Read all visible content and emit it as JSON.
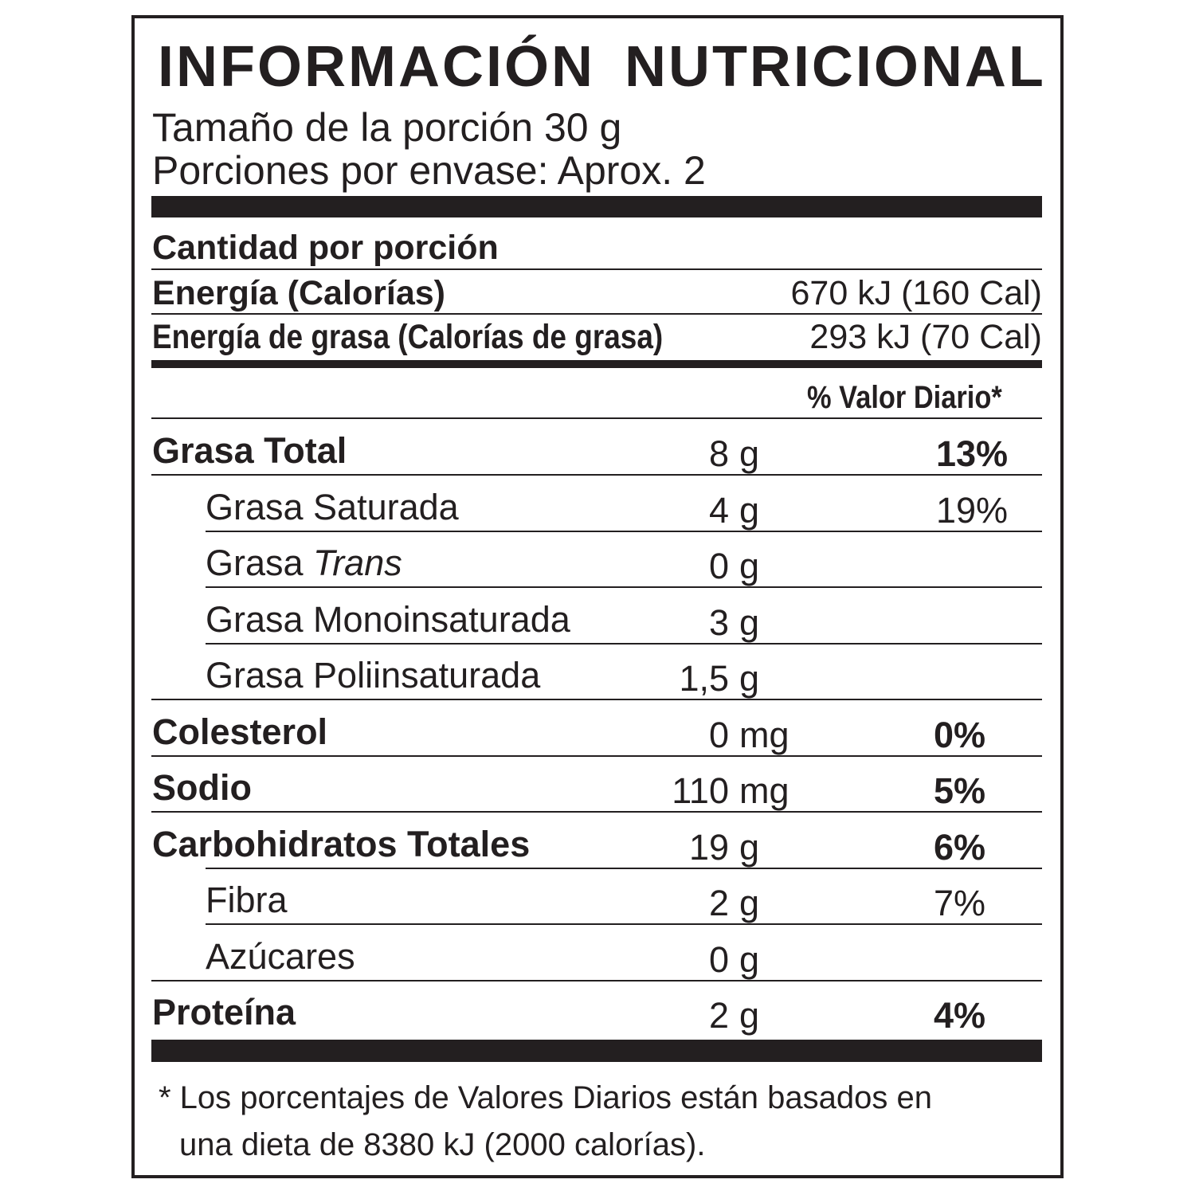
{
  "title": "INFORMACIÓN  NUTRICIONAL",
  "serving_size": "Tamaño de la porción  30 g",
  "servings_per_container": "Porciones por envase: Aprox. 2",
  "amount_per_serving": "Cantidad por porción",
  "energy": {
    "label": "Energía (Calorías)",
    "value": "670 kJ (160 Cal)"
  },
  "energy_fat": {
    "label": "Energía de grasa (Calorías de grasa)",
    "value": "293 kJ (70 Cal)"
  },
  "daily_value_header": "% Valor Diario*",
  "nutrients": [
    {
      "label": "Grasa Total",
      "num": "8",
      "unit": "g",
      "pct": "13%"
    },
    {
      "label": "Grasa Saturada",
      "num": "4",
      "unit": "g",
      "pct": "19%"
    },
    {
      "label": "Grasa ",
      "label_italic": "Trans",
      "num": "0",
      "unit": "g",
      "pct": ""
    },
    {
      "label": "Grasa Monoinsaturada",
      "num": "3",
      "unit": "g",
      "pct": ""
    },
    {
      "label": "Grasa Poliinsaturada",
      "num": "1,5",
      "unit": "g",
      "pct": ""
    },
    {
      "label": "Colesterol",
      "num": "0",
      "unit": "mg",
      "pct": "0%"
    },
    {
      "label": "Sodio",
      "num": "110",
      "unit": "mg",
      "pct": "5%"
    },
    {
      "label": "Carbohidratos Totales",
      "num": "19",
      "unit": "g",
      "pct": "6%"
    },
    {
      "label": "Fibra",
      "num": "2",
      "unit": "g",
      "pct": "7%"
    },
    {
      "label": "Azúcares",
      "num": "0",
      "unit": "g",
      "pct": ""
    },
    {
      "label": "Proteína",
      "num": "2",
      "unit": "g",
      "pct": "4%"
    }
  ],
  "footnote": {
    "line1": "* Los porcentajes de Valores Diarios están basados en",
    "line2": "una dieta de 8380 kJ (2000 calorías)."
  }
}
